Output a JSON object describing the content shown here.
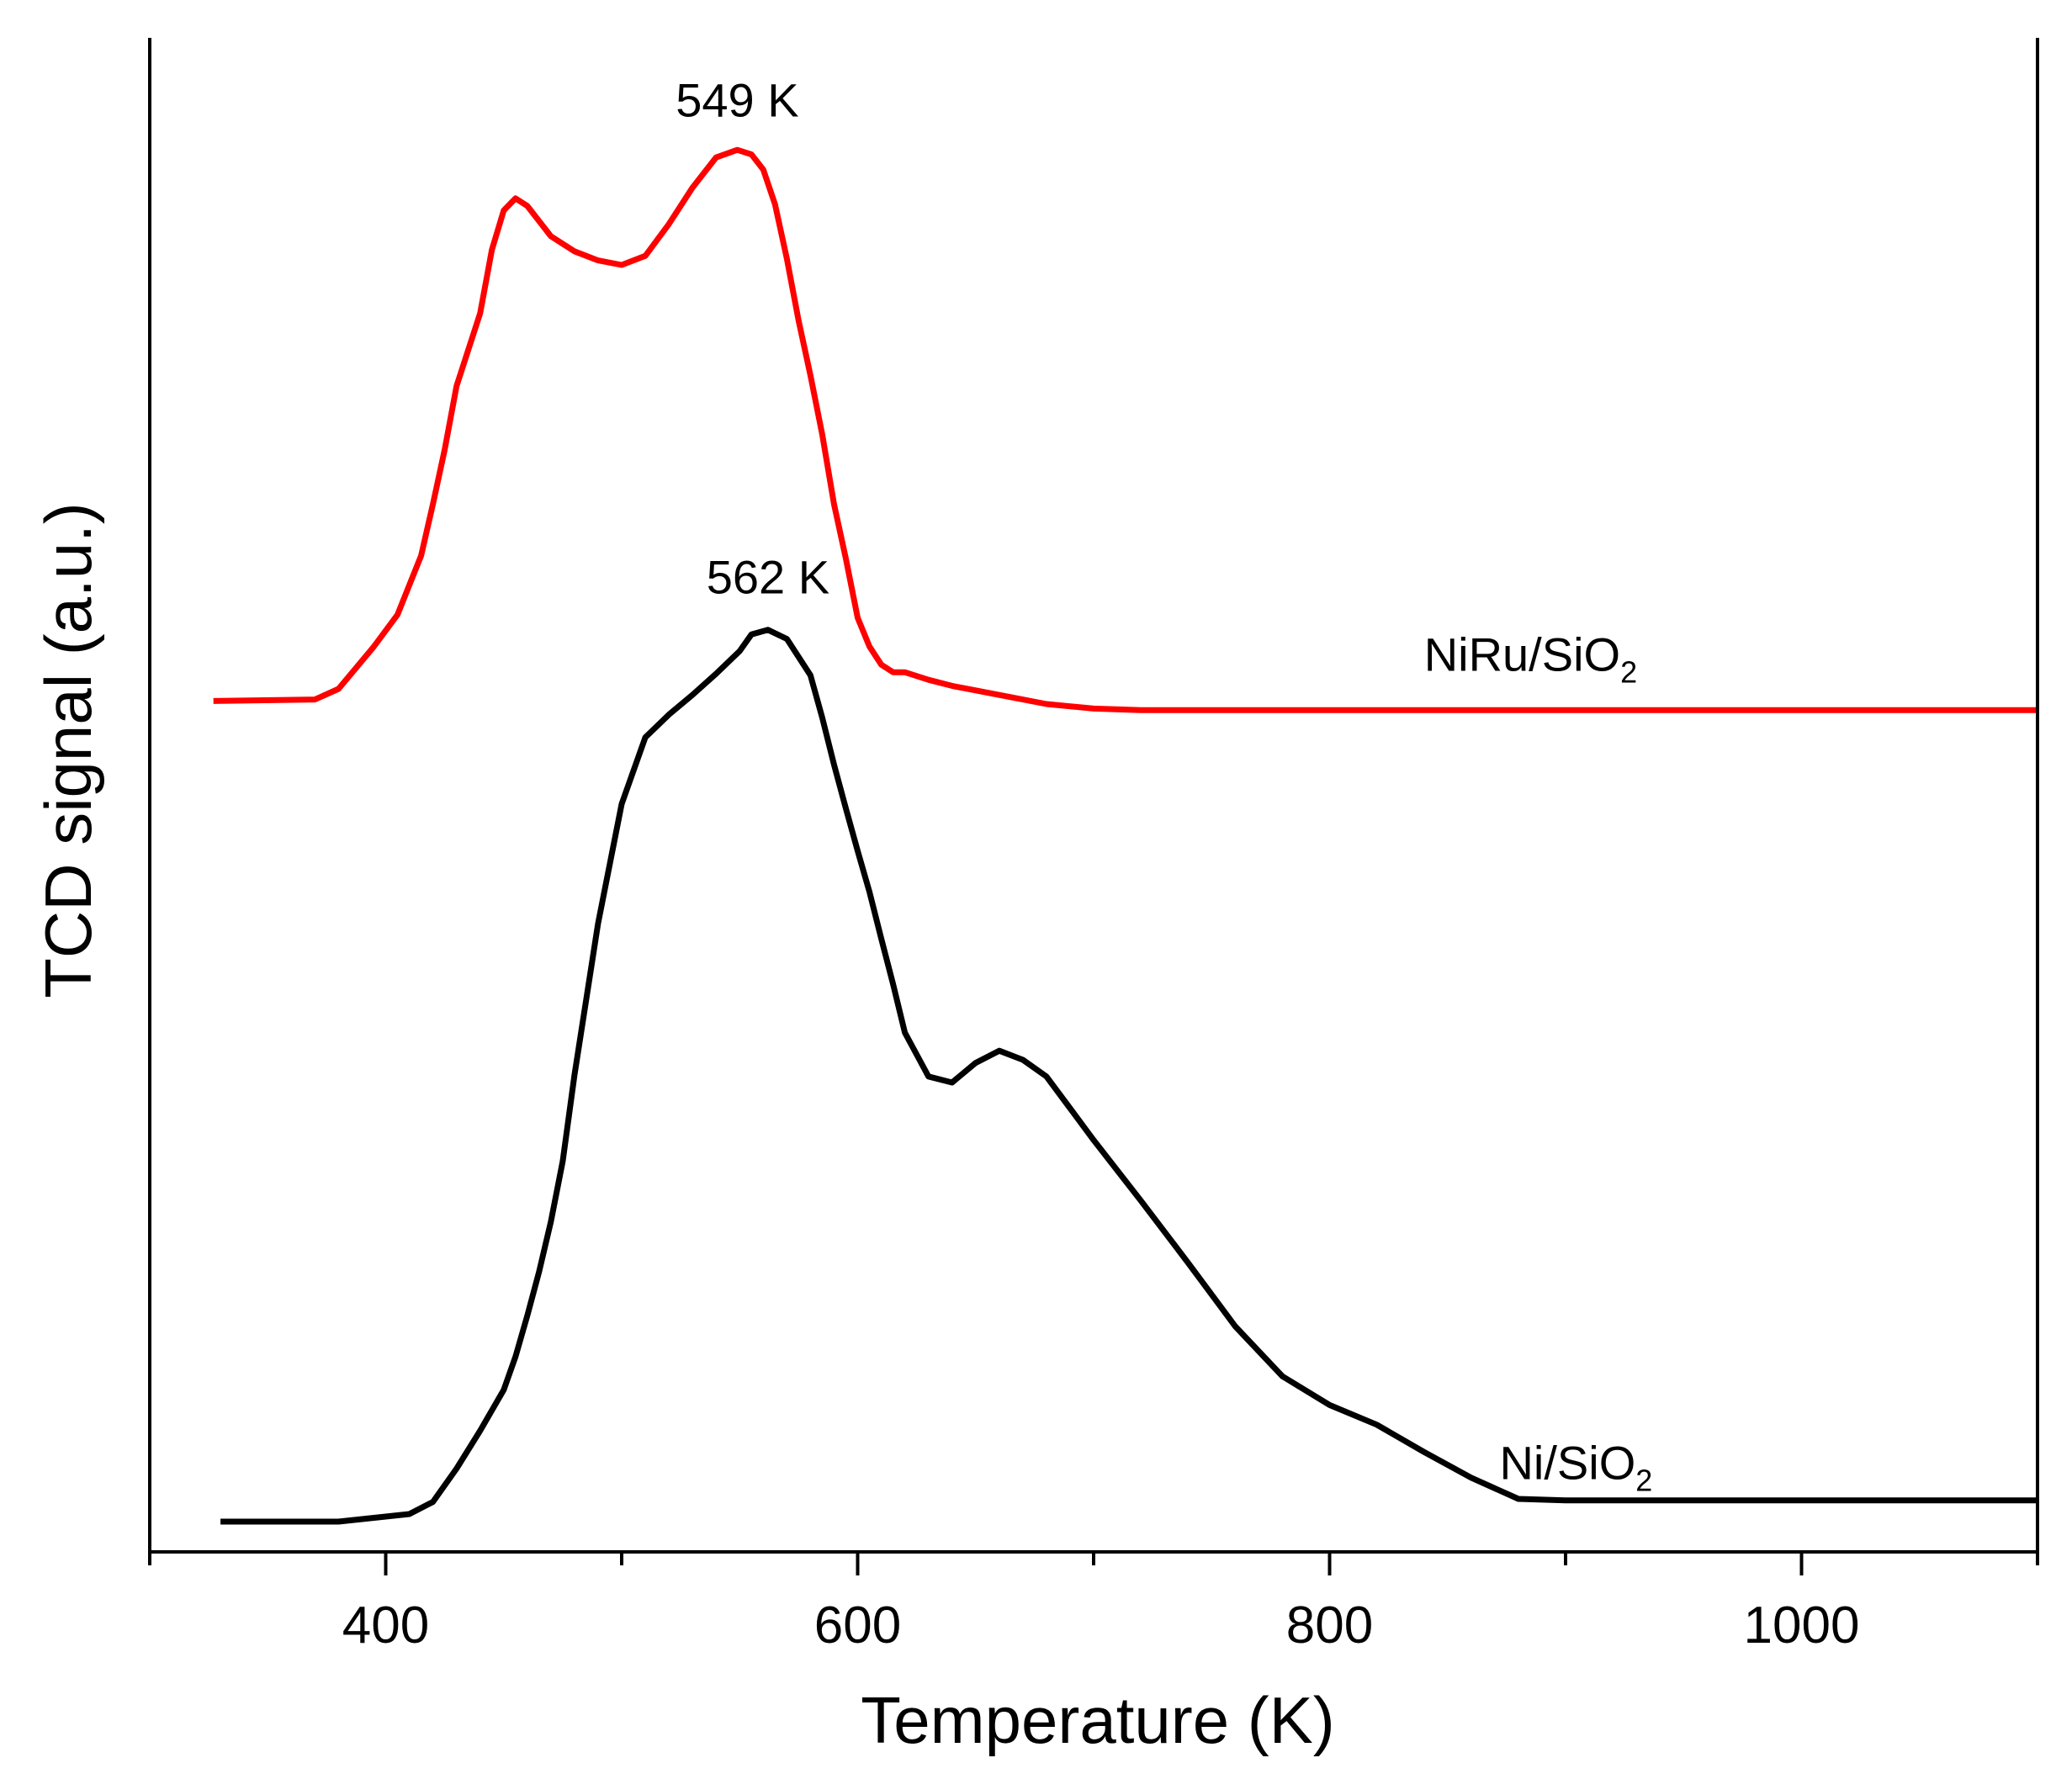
{
  "chart_data": {
    "type": "line",
    "title": "",
    "xlabel": "Temperature (K)",
    "ylabel": "TCD signal (a.u.)",
    "xlim": [
      300,
      1100
    ],
    "ylim": [
      0,
      100
    ],
    "x_ticks_major": [
      400,
      600,
      800,
      1000
    ],
    "x_ticks_minor": [
      300,
      500,
      700,
      900,
      1100
    ],
    "x_tick_labels": [
      "400",
      "600",
      "800",
      "1000"
    ],
    "y_ticks": [],
    "grid": false,
    "colors": {
      "niru": "#ff0000",
      "ni": "#000000",
      "axes": "#000000"
    },
    "series": [
      {
        "name": "NiRu/SiO2",
        "label_base": "NiRu/SiO",
        "label_sub": "2",
        "label_at": [
          840,
          58.2
        ],
        "color": "#ff0000",
        "x": [
          327,
          370,
          380,
          395,
          405,
          415,
          420,
          425,
          430,
          440,
          445,
          450,
          455,
          460,
          470,
          480,
          490,
          500,
          510,
          520,
          530,
          540,
          549,
          555,
          560,
          565,
          570,
          575,
          580,
          585,
          590,
          595,
          600,
          605,
          610,
          615,
          620,
          630,
          640,
          660,
          680,
          700,
          720,
          800,
          900,
          1000,
          1100
        ],
        "y": [
          56.2,
          56.3,
          57.0,
          59.8,
          61.9,
          65.8,
          69.2,
          72.8,
          77.0,
          81.8,
          86.0,
          88.6,
          89.4,
          88.9,
          86.9,
          85.9,
          85.3,
          85.0,
          85.6,
          87.7,
          90.1,
          92.1,
          92.6,
          92.3,
          91.3,
          89.0,
          85.4,
          81.3,
          77.7,
          73.8,
          69.2,
          65.6,
          61.7,
          59.8,
          58.6,
          58.1,
          58.1,
          57.6,
          57.2,
          56.6,
          56.0,
          55.7,
          55.6,
          55.6,
          55.6,
          55.6,
          55.6
        ]
      },
      {
        "name": "Ni/SiO2",
        "label_base": "Ni/SiO",
        "label_sub": "2",
        "label_at": [
          872,
          4.8
        ],
        "color": "#000000",
        "x": [
          330,
          380,
          410,
          420,
          430,
          440,
          450,
          455,
          460,
          465,
          470,
          475,
          480,
          490,
          500,
          510,
          520,
          530,
          540,
          550,
          555,
          562,
          570,
          580,
          585,
          590,
          595,
          600,
          605,
          610,
          615,
          620,
          630,
          640,
          650,
          660,
          670,
          680,
          690,
          700,
          720,
          740,
          760,
          780,
          800,
          820,
          840,
          860,
          880,
          900,
          1000,
          1100
        ],
        "y": [
          2.0,
          2.0,
          2.5,
          3.3,
          5.5,
          8.0,
          10.7,
          12.9,
          15.6,
          18.5,
          21.8,
          25.8,
          31.5,
          41.5,
          49.4,
          53.8,
          55.3,
          56.6,
          58.0,
          59.5,
          60.6,
          60.9,
          60.3,
          57.9,
          55.1,
          52.0,
          49.1,
          46.3,
          43.6,
          40.5,
          37.5,
          34.3,
          31.4,
          31.0,
          32.3,
          33.1,
          32.5,
          31.4,
          29.3,
          27.2,
          23.2,
          19.1,
          14.9,
          11.6,
          9.7,
          8.4,
          6.6,
          4.9,
          3.5,
          3.4,
          3.4,
          3.4
        ]
      }
    ],
    "annotations": [
      {
        "text": "549 K",
        "x": 549,
        "y": 94.8
      },
      {
        "text": "562 K",
        "x": 562,
        "y": 63.3
      }
    ]
  }
}
